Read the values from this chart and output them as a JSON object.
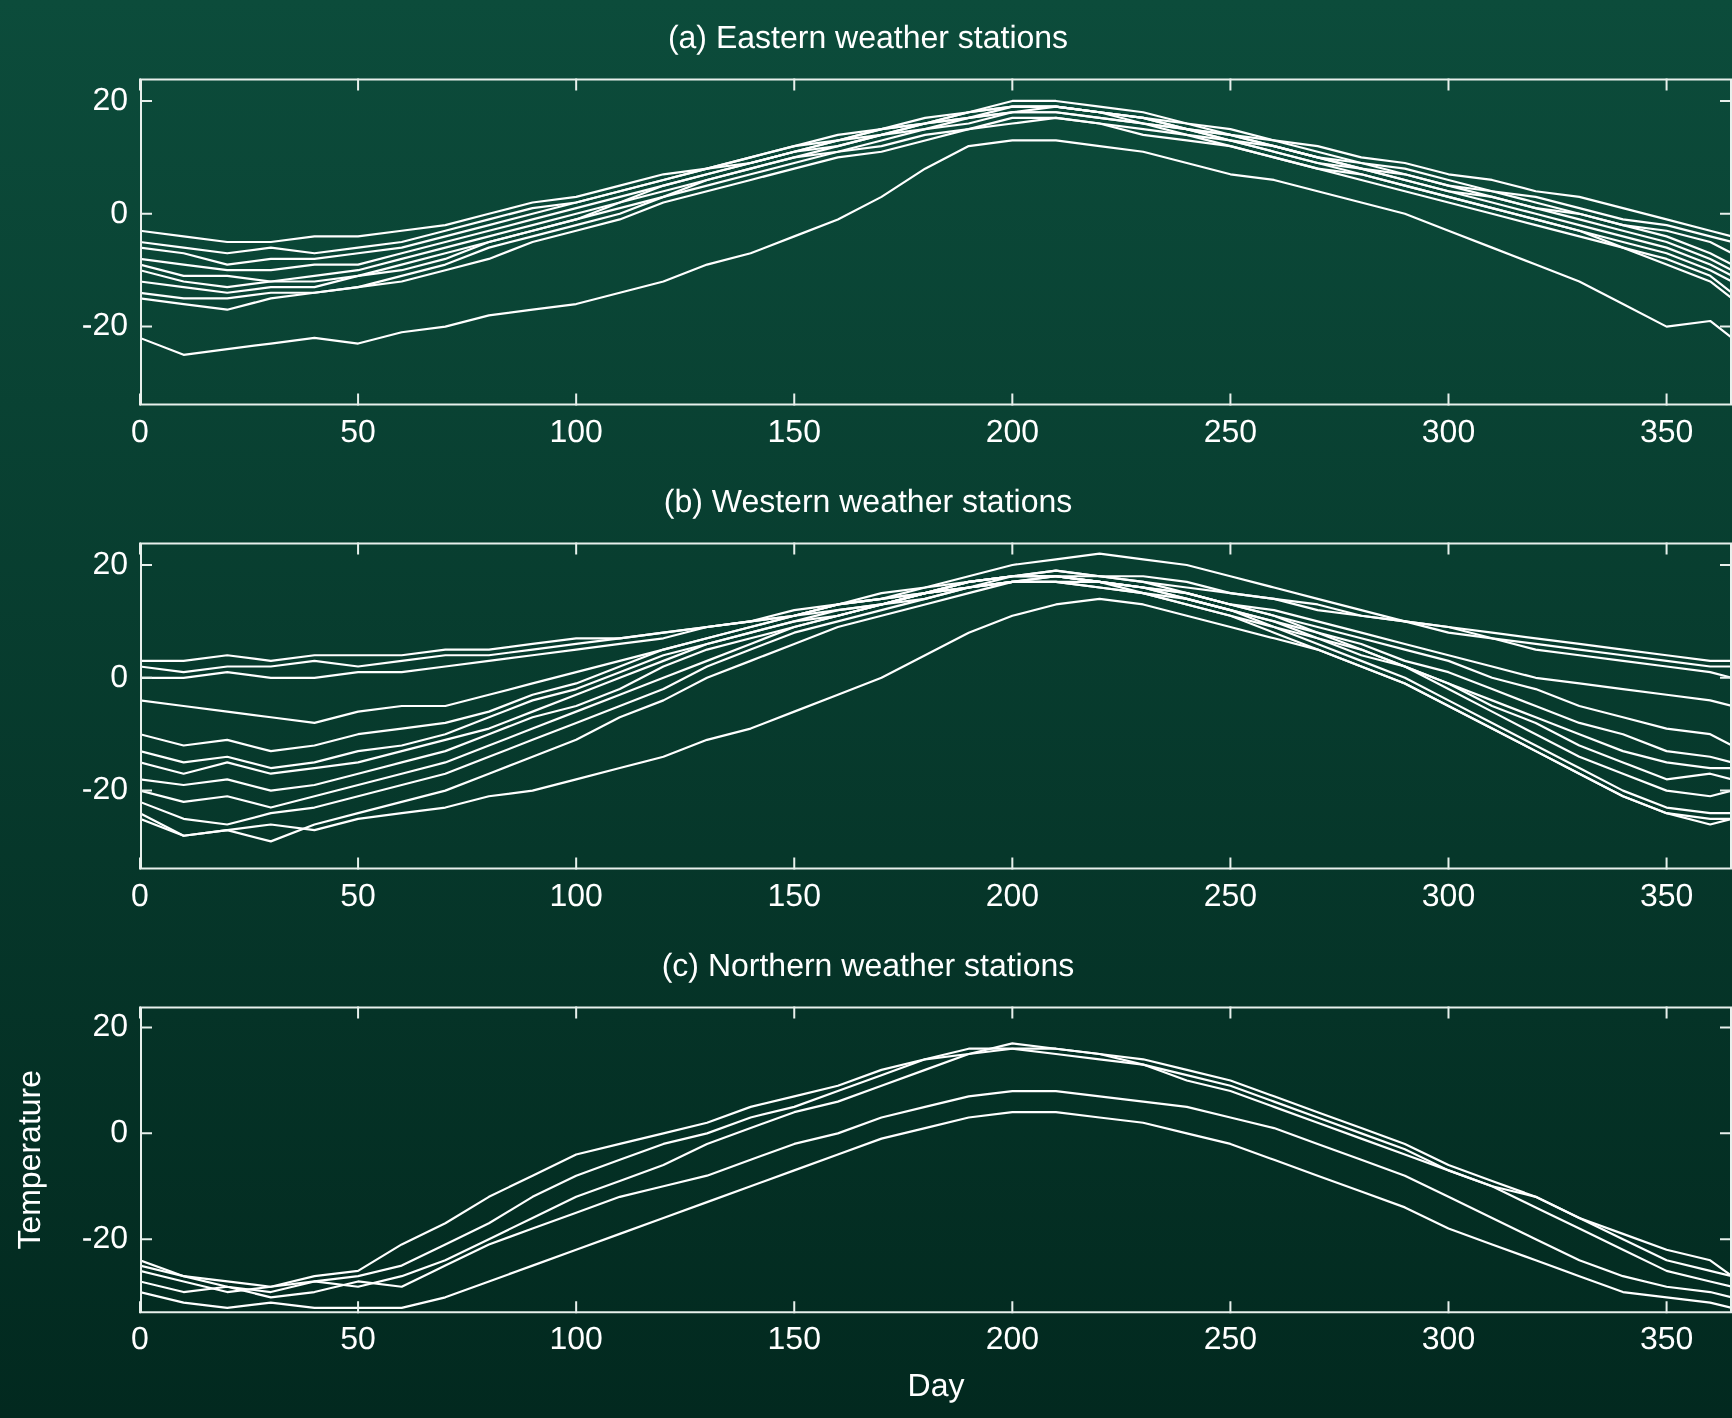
{
  "chart_data": [
    {
      "type": "line",
      "title": "(a) Eastern weather stations",
      "x": [
        0,
        10,
        20,
        30,
        40,
        50,
        60,
        70,
        80,
        90,
        100,
        110,
        120,
        130,
        140,
        150,
        160,
        170,
        180,
        190,
        200,
        210,
        220,
        230,
        240,
        250,
        260,
        270,
        280,
        290,
        300,
        310,
        320,
        330,
        340,
        350,
        360,
        365
      ],
      "xlim": [
        0,
        365
      ],
      "xticks": [
        0,
        50,
        100,
        150,
        200,
        250,
        300,
        350
      ],
      "ylim": [
        -34,
        24
      ],
      "yticks": [
        -20,
        0,
        20
      ],
      "grid": false,
      "series": [
        {
          "color": "#ffffff",
          "values": [
            -3,
            -4,
            -5,
            -5,
            -4,
            -4,
            -3,
            -2,
            0,
            2,
            3,
            5,
            7,
            8,
            10,
            12,
            14,
            15,
            17,
            18,
            20,
            20,
            19,
            18,
            16,
            15,
            13,
            12,
            10,
            9,
            7,
            6,
            4,
            3,
            1,
            -1,
            -3,
            -4
          ]
        },
        {
          "color": "#ffffff",
          "values": [
            -5,
            -6,
            -7,
            -6,
            -7,
            -6,
            -5,
            -3,
            -1,
            1,
            2,
            4,
            6,
            8,
            10,
            12,
            13,
            15,
            16,
            18,
            19,
            19,
            18,
            17,
            16,
            14,
            13,
            11,
            9,
            8,
            6,
            4,
            3,
            1,
            -1,
            -2,
            -4,
            -5
          ]
        },
        {
          "color": "#ffffff",
          "values": [
            -6,
            -7,
            -9,
            -8,
            -8,
            -7,
            -6,
            -4,
            -2,
            0,
            2,
            4,
            6,
            8,
            9,
            11,
            13,
            14,
            16,
            17,
            19,
            19,
            18,
            17,
            15,
            14,
            12,
            10,
            9,
            7,
            5,
            4,
            2,
            0,
            -2,
            -3,
            -5,
            -7
          ]
        },
        {
          "color": "#ffffff",
          "values": [
            -8,
            -9,
            -10,
            -10,
            -9,
            -9,
            -7,
            -5,
            -3,
            -1,
            1,
            3,
            5,
            7,
            9,
            11,
            13,
            15,
            16,
            18,
            19,
            19,
            18,
            16,
            15,
            13,
            12,
            10,
            8,
            7,
            5,
            3,
            1,
            0,
            -2,
            -4,
            -7,
            -9
          ]
        },
        {
          "color": "#ffffff",
          "values": [
            -9,
            -11,
            -11,
            -12,
            -11,
            -10,
            -8,
            -6,
            -4,
            -2,
            0,
            2,
            5,
            7,
            9,
            11,
            12,
            14,
            16,
            17,
            18,
            19,
            18,
            17,
            15,
            14,
            12,
            10,
            8,
            6,
            4,
            3,
            1,
            -1,
            -3,
            -5,
            -8,
            -10
          ]
        },
        {
          "color": "#ffffff",
          "values": [
            -10,
            -12,
            -13,
            -12,
            -12,
            -11,
            -9,
            -7,
            -5,
            -3,
            -1,
            2,
            4,
            6,
            8,
            10,
            12,
            14,
            15,
            17,
            18,
            18,
            17,
            16,
            15,
            13,
            11,
            9,
            8,
            6,
            4,
            2,
            0,
            -2,
            -4,
            -6,
            -9,
            -11
          ]
        },
        {
          "color": "#ffffff",
          "values": [
            -12,
            -13,
            -14,
            -13,
            -13,
            -11,
            -10,
            -8,
            -5,
            -3,
            -1,
            1,
            3,
            6,
            8,
            10,
            11,
            13,
            15,
            16,
            18,
            18,
            17,
            16,
            14,
            13,
            11,
            9,
            7,
            5,
            3,
            1,
            -1,
            -3,
            -5,
            -7,
            -10,
            -12
          ]
        },
        {
          "color": "#ffffff",
          "values": [
            -14,
            -15,
            -15,
            -14,
            -14,
            -13,
            -11,
            -9,
            -6,
            -4,
            -2,
            0,
            3,
            5,
            7,
            9,
            11,
            12,
            14,
            15,
            17,
            17,
            16,
            15,
            14,
            12,
            10,
            8,
            7,
            5,
            3,
            1,
            -1,
            -3,
            -6,
            -8,
            -11,
            -14
          ]
        },
        {
          "color": "#ffffff",
          "values": [
            -15,
            -16,
            -17,
            -15,
            -14,
            -13,
            -12,
            -10,
            -8,
            -5,
            -3,
            -1,
            2,
            4,
            6,
            8,
            10,
            11,
            13,
            15,
            16,
            17,
            16,
            14,
            13,
            12,
            10,
            8,
            6,
            4,
            2,
            0,
            -2,
            -4,
            -6,
            -9,
            -12,
            -15
          ]
        },
        {
          "color": "#ffffff",
          "values": [
            -22,
            -25,
            -24,
            -23,
            -22,
            -23,
            -21,
            -20,
            -18,
            -17,
            -16,
            -14,
            -12,
            -9,
            -7,
            -4,
            -1,
            3,
            8,
            12,
            13,
            13,
            12,
            11,
            9,
            7,
            6,
            4,
            2,
            0,
            -3,
            -6,
            -9,
            -12,
            -16,
            -20,
            -19,
            -22
          ]
        }
      ]
    },
    {
      "type": "line",
      "title": "(b) Western weather stations",
      "x": [
        0,
        10,
        20,
        30,
        40,
        50,
        60,
        70,
        80,
        90,
        100,
        110,
        120,
        130,
        140,
        150,
        160,
        170,
        180,
        190,
        200,
        210,
        220,
        230,
        240,
        250,
        260,
        270,
        280,
        290,
        300,
        310,
        320,
        330,
        340,
        350,
        360,
        365
      ],
      "xlim": [
        0,
        365
      ],
      "xticks": [
        0,
        50,
        100,
        150,
        200,
        250,
        300,
        350
      ],
      "ylim": [
        -34,
        24
      ],
      "yticks": [
        -20,
        0,
        20
      ],
      "grid": false,
      "series": [
        {
          "color": "#ffffff",
          "values": [
            3,
            3,
            4,
            3,
            4,
            4,
            4,
            5,
            5,
            6,
            7,
            7,
            8,
            9,
            10,
            11,
            12,
            13,
            15,
            16,
            17,
            18,
            18,
            17,
            16,
            15,
            14,
            12,
            11,
            10,
            9,
            8,
            7,
            6,
            5,
            4,
            3,
            3
          ]
        },
        {
          "color": "#ffffff",
          "values": [
            2,
            1,
            2,
            2,
            3,
            2,
            3,
            4,
            4,
            5,
            6,
            7,
            8,
            9,
            10,
            11,
            13,
            14,
            15,
            17,
            18,
            19,
            18,
            18,
            17,
            15,
            14,
            13,
            11,
            10,
            9,
            7,
            6,
            5,
            4,
            3,
            2,
            2
          ]
        },
        {
          "color": "#ffffff",
          "values": [
            0,
            0,
            1,
            0,
            0,
            1,
            1,
            2,
            3,
            4,
            5,
            6,
            7,
            9,
            10,
            12,
            13,
            15,
            16,
            18,
            20,
            21,
            22,
            21,
            20,
            18,
            16,
            14,
            12,
            10,
            8,
            7,
            5,
            4,
            3,
            2,
            1,
            0
          ]
        },
        {
          "color": "#ffffff",
          "values": [
            -4,
            -5,
            -6,
            -7,
            -8,
            -6,
            -5,
            -5,
            -3,
            -1,
            1,
            3,
            5,
            7,
            9,
            11,
            13,
            14,
            16,
            17,
            18,
            18,
            17,
            16,
            15,
            13,
            12,
            10,
            8,
            6,
            4,
            2,
            0,
            -1,
            -2,
            -3,
            -4,
            -5
          ]
        },
        {
          "color": "#ffffff",
          "values": [
            -10,
            -12,
            -11,
            -13,
            -12,
            -10,
            -9,
            -8,
            -6,
            -3,
            -1,
            2,
            5,
            7,
            9,
            11,
            13,
            14,
            15,
            17,
            18,
            18,
            17,
            16,
            15,
            13,
            11,
            9,
            7,
            5,
            3,
            0,
            -2,
            -5,
            -7,
            -9,
            -10,
            -12
          ]
        },
        {
          "color": "#ffffff",
          "values": [
            -13,
            -15,
            -14,
            -16,
            -15,
            -13,
            -12,
            -10,
            -7,
            -4,
            -2,
            1,
            4,
            6,
            8,
            10,
            12,
            13,
            15,
            16,
            17,
            17,
            17,
            15,
            14,
            12,
            10,
            8,
            6,
            3,
            1,
            -2,
            -5,
            -8,
            -10,
            -13,
            -14,
            -15
          ]
        },
        {
          "color": "#ffffff",
          "values": [
            -15,
            -17,
            -15,
            -17,
            -16,
            -15,
            -13,
            -11,
            -9,
            -6,
            -3,
            0,
            3,
            6,
            8,
            10,
            11,
            13,
            14,
            16,
            17,
            17,
            16,
            15,
            13,
            11,
            9,
            7,
            4,
            2,
            -1,
            -4,
            -7,
            -10,
            -13,
            -15,
            -16,
            -16
          ]
        },
        {
          "color": "#ffffff",
          "values": [
            -18,
            -19,
            -18,
            -20,
            -19,
            -17,
            -15,
            -13,
            -10,
            -7,
            -5,
            -2,
            2,
            5,
            7,
            9,
            11,
            13,
            15,
            16,
            18,
            18,
            17,
            16,
            14,
            12,
            10,
            7,
            5,
            2,
            -1,
            -5,
            -8,
            -12,
            -15,
            -18,
            -17,
            -18
          ]
        },
        {
          "color": "#ffffff",
          "values": [
            -20,
            -22,
            -21,
            -23,
            -21,
            -19,
            -17,
            -15,
            -12,
            -9,
            -6,
            -3,
            0,
            3,
            6,
            9,
            11,
            13,
            15,
            17,
            18,
            19,
            18,
            17,
            15,
            13,
            11,
            8,
            5,
            2,
            -2,
            -6,
            -10,
            -14,
            -17,
            -20,
            -21,
            -20
          ]
        },
        {
          "color": "#ffffff",
          "values": [
            -22,
            -25,
            -26,
            -24,
            -23,
            -21,
            -19,
            -17,
            -14,
            -11,
            -8,
            -5,
            -2,
            2,
            5,
            8,
            10,
            12,
            14,
            16,
            17,
            18,
            17,
            16,
            14,
            12,
            9,
            6,
            3,
            0,
            -4,
            -8,
            -12,
            -16,
            -20,
            -23,
            -24,
            -24
          ]
        },
        {
          "color": "#ffffff",
          "values": [
            -24,
            -28,
            -27,
            -29,
            -26,
            -24,
            -22,
            -20,
            -17,
            -14,
            -11,
            -7,
            -4,
            0,
            3,
            6,
            9,
            11,
            13,
            15,
            17,
            17,
            16,
            15,
            13,
            11,
            8,
            5,
            2,
            -1,
            -5,
            -9,
            -13,
            -17,
            -21,
            -24,
            -25,
            -25
          ]
        },
        {
          "color": "#ffffff",
          "values": [
            -25,
            -28,
            -27,
            -26,
            -27,
            -25,
            -24,
            -23,
            -21,
            -20,
            -18,
            -16,
            -14,
            -11,
            -9,
            -6,
            -3,
            0,
            4,
            8,
            11,
            13,
            14,
            13,
            11,
            9,
            7,
            5,
            2,
            -1,
            -5,
            -9,
            -13,
            -17,
            -21,
            -24,
            -26,
            -25
          ]
        }
      ]
    },
    {
      "type": "line",
      "title": "(c) Northern weather stations",
      "xlabel": "Day",
      "ylabel": "Temperature",
      "x": [
        0,
        10,
        20,
        30,
        40,
        50,
        60,
        70,
        80,
        90,
        100,
        110,
        120,
        130,
        140,
        150,
        160,
        170,
        180,
        190,
        200,
        210,
        220,
        230,
        240,
        250,
        260,
        270,
        280,
        290,
        300,
        310,
        320,
        330,
        340,
        350,
        360,
        365
      ],
      "xlim": [
        0,
        365
      ],
      "xticks": [
        0,
        50,
        100,
        150,
        200,
        250,
        300,
        350
      ],
      "ylim": [
        -34,
        24
      ],
      "yticks": [
        -20,
        0,
        20
      ],
      "grid": false,
      "series": [
        {
          "color": "#ffffff",
          "values": [
            -24,
            -27,
            -28,
            -29,
            -27,
            -26,
            -21,
            -17,
            -12,
            -8,
            -4,
            -2,
            0,
            2,
            5,
            7,
            9,
            12,
            14,
            16,
            16,
            15,
            14,
            13,
            10,
            8,
            5,
            2,
            -1,
            -4,
            -7,
            -10,
            -12,
            -16,
            -19,
            -22,
            -24,
            -27
          ]
        },
        {
          "color": "#ffffff",
          "values": [
            -26,
            -28,
            -30,
            -29,
            -28,
            -27,
            -25,
            -21,
            -17,
            -12,
            -8,
            -5,
            -2,
            0,
            3,
            5,
            8,
            11,
            14,
            15,
            17,
            16,
            15,
            14,
            12,
            10,
            7,
            4,
            1,
            -2,
            -6,
            -9,
            -12,
            -16,
            -20,
            -24,
            -26,
            -27
          ]
        },
        {
          "color": "#ffffff",
          "values": [
            -25,
            -27,
            -29,
            -30,
            -28,
            -29,
            -27,
            -24,
            -20,
            -16,
            -12,
            -9,
            -6,
            -2,
            1,
            4,
            6,
            9,
            12,
            15,
            16,
            16,
            15,
            13,
            11,
            9,
            6,
            3,
            0,
            -3,
            -7,
            -10,
            -14,
            -18,
            -22,
            -26,
            -28,
            -29
          ]
        },
        {
          "color": "#ffffff",
          "values": [
            -28,
            -30,
            -29,
            -31,
            -30,
            -28,
            -29,
            -25,
            -21,
            -18,
            -15,
            -12,
            -10,
            -8,
            -5,
            -2,
            0,
            3,
            5,
            7,
            8,
            8,
            7,
            6,
            5,
            3,
            1,
            -2,
            -5,
            -8,
            -12,
            -16,
            -20,
            -24,
            -27,
            -29,
            -30,
            -31
          ]
        },
        {
          "color": "#ffffff",
          "values": [
            -30,
            -32,
            -33,
            -32,
            -33,
            -33,
            -33,
            -31,
            -28,
            -25,
            -22,
            -19,
            -16,
            -13,
            -10,
            -7,
            -4,
            -1,
            1,
            3,
            4,
            4,
            3,
            2,
            0,
            -2,
            -5,
            -8,
            -11,
            -14,
            -18,
            -21,
            -24,
            -27,
            -30,
            -31,
            -32,
            -33
          ]
        }
      ]
    }
  ]
}
